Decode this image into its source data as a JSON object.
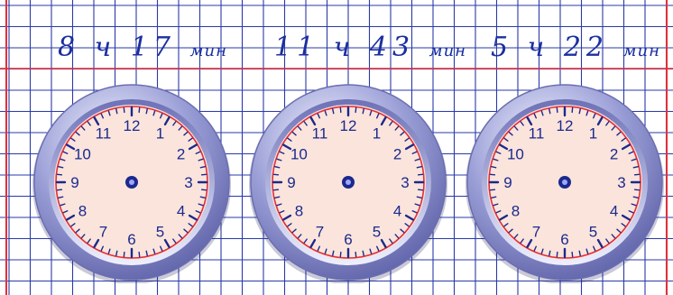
{
  "clocks": [
    {
      "time_label": "8 ч 17",
      "unit": "мин"
    },
    {
      "time_label": "11 ч 43",
      "unit": "мин"
    },
    {
      "time_label": "5 ч 22",
      "unit": "мин"
    }
  ],
  "dial_numbers": [
    "12",
    "1",
    "2",
    "3",
    "4",
    "5",
    "6",
    "7",
    "8",
    "9",
    "10",
    "11"
  ],
  "colors": {
    "grid": "#2a3aa8",
    "margin_line": "#e0303a",
    "label_ink": "#1b2fa0",
    "bezel": "#9a9ed6",
    "dial_face": "#fbe4dc",
    "dial_ring": "#e0303a",
    "ticks": "#1a2a8c"
  }
}
